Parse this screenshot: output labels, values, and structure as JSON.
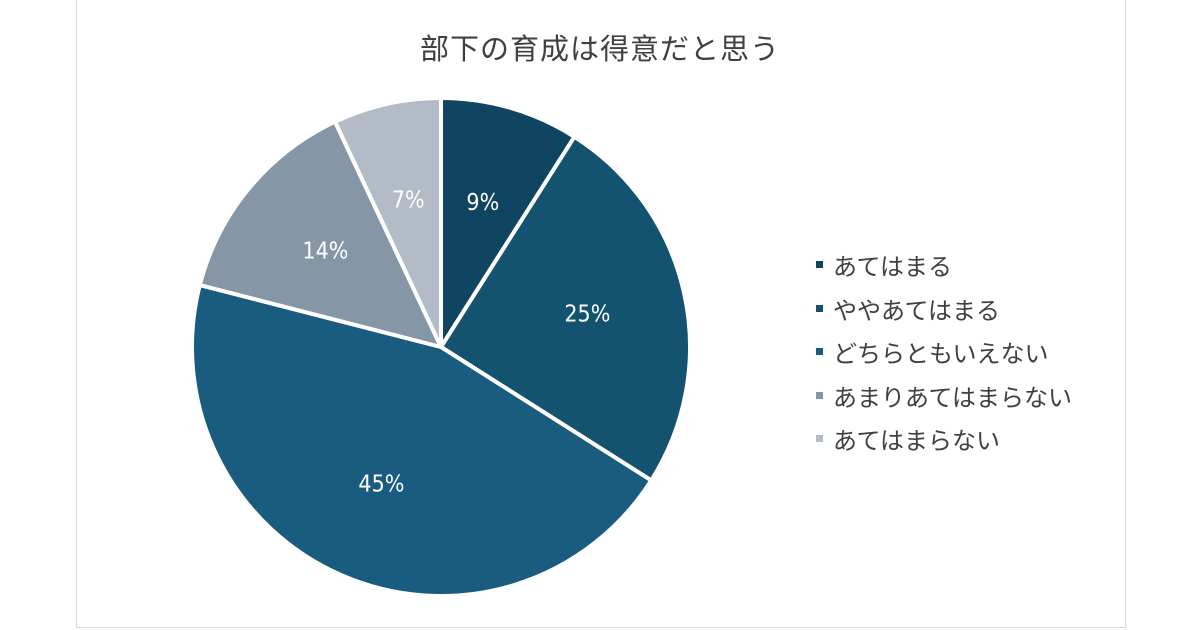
{
  "chart_data": {
    "type": "pie",
    "title": "部下の育成は得意だと思う",
    "categories": [
      "あてはまる",
      "ややあてはまる",
      "どちらともいえない",
      "あまりあてはまらない",
      "あてはまらない"
    ],
    "values": [
      9,
      25,
      45,
      14,
      7
    ],
    "data_labels": [
      "9%",
      "25%",
      "45%",
      "14%",
      "7%"
    ],
    "colors": [
      "#0f4560",
      "#145370",
      "#1a5c80",
      "#8596a7",
      "#b3bcc6"
    ],
    "start_angle_deg": 0,
    "direction": "clockwise",
    "legend_position": "right"
  }
}
